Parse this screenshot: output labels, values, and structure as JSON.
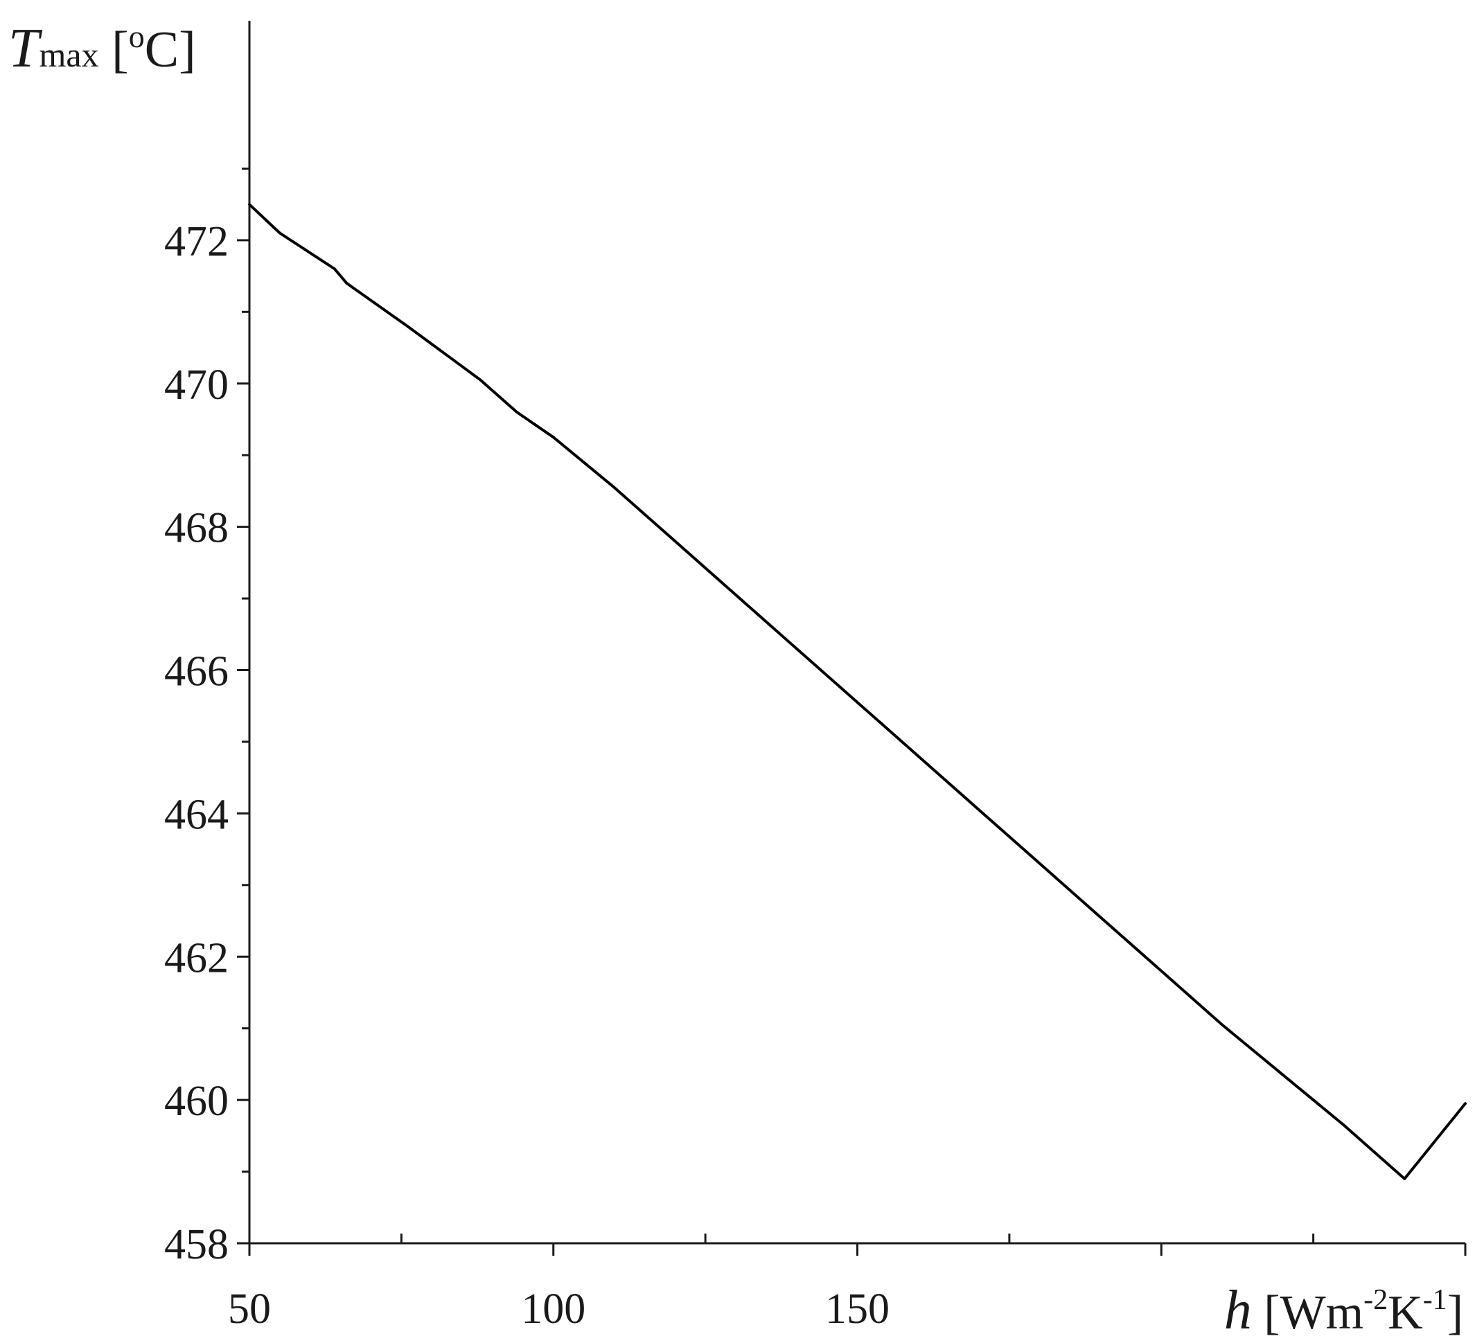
{
  "chart_data": {
    "type": "line",
    "xlabel": {
      "symbol": "h",
      "unit_open": " [Wm",
      "exp1": "-2",
      "unit_mid": "K",
      "exp2": "-1",
      "unit_close": "]"
    },
    "ylabel": {
      "symbol": "T",
      "subscript": "max",
      "unit_open": " [",
      "superscript": "o",
      "unit_close": "C]"
    },
    "xlim": [
      50,
      250
    ],
    "ylim": [
      458,
      474
    ],
    "xticks": [
      50,
      100,
      150
    ],
    "xtick_labels": [
      "50",
      "100",
      "150"
    ],
    "x_major_tick_marks": [
      50,
      100,
      150,
      200,
      250
    ],
    "x_minor_tick_marks": [
      75,
      125,
      175,
      225
    ],
    "yticks": [
      458,
      460,
      462,
      464,
      466,
      468,
      470,
      472
    ],
    "ytick_labels": [
      "458",
      "460",
      "462",
      "464",
      "466",
      "468",
      "470",
      "472"
    ],
    "y_minor_tick_marks": [
      459,
      461,
      463,
      465,
      467,
      469,
      471,
      473
    ],
    "grid": false,
    "series": [
      {
        "color": "#000000",
        "x": [
          50,
          55,
          64,
          66,
          76,
          80,
          84,
          88,
          90,
          94,
          100,
          110,
          120,
          130,
          140,
          150,
          160,
          170,
          180,
          190,
          200,
          210,
          220,
          230,
          240,
          250
        ],
        "y": [
          472.5,
          472.1,
          471.6,
          471.4,
          470.8,
          470.55,
          470.3,
          470.05,
          469.9,
          469.6,
          469.25,
          468.55,
          467.8,
          467.05,
          466.3,
          465.55,
          464.8,
          464.05,
          463.3,
          462.55,
          461.8,
          461.05,
          460.35,
          459.65,
          458.9,
          459.95
        ]
      }
    ]
  }
}
